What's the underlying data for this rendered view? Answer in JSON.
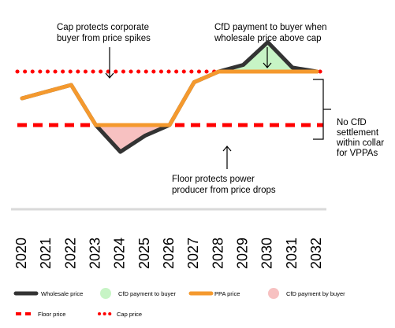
{
  "chart_data": {
    "type": "line",
    "x": [
      2020,
      2021,
      2022,
      2023,
      2024,
      2025,
      2026,
      2027,
      2028,
      2029,
      2030,
      2031,
      2032
    ],
    "tick_labels": [
      "2020",
      "2021",
      "2022",
      "2023",
      "2024",
      "2025",
      "2026",
      "2027",
      "2028",
      "2029",
      "2030",
      "2031",
      "2032"
    ],
    "cap_level": 70,
    "floor_level": 30,
    "ylim": [
      0,
      100
    ],
    "series": [
      {
        "name": "Wholesale price",
        "color": "#333333",
        "x": [
          2020,
          2021,
          2022,
          2023,
          2024,
          2025,
          2026,
          2027,
          2028,
          2029,
          2030,
          2031,
          2032
        ],
        "values": [
          50,
          55,
          60,
          30,
          10,
          22,
          30,
          62,
          70,
          75,
          92,
          73,
          70
        ]
      },
      {
        "name": "PPA price",
        "color": "#f4992e",
        "x": [
          2020,
          2021,
          2022,
          2023,
          2024,
          2025,
          2026,
          2027,
          2028,
          2029,
          2030,
          2031,
          2032
        ],
        "values": [
          50,
          55,
          60,
          30,
          30,
          30,
          30,
          62,
          70,
          70,
          70,
          70,
          70
        ]
      }
    ],
    "bands": [
      {
        "name": "CfD payment to buyer",
        "color": "#c7f4c5"
      },
      {
        "name": "CfD payment by buyer",
        "color": "#f7c1c1"
      }
    ],
    "reference_lines": [
      {
        "name": "Floor price",
        "color": "#ff0000",
        "style": "dashed"
      },
      {
        "name": "Cap price",
        "color": "#ff0000",
        "style": "dotted"
      }
    ],
    "annotations": {
      "cap_protects": [
        "Cap protects corporate",
        "buyer from price spikes"
      ],
      "cfd_to_buyer": [
        "CfD payment to buyer when",
        "wholesale price above cap"
      ],
      "floor_protects": [
        "Floor protects power",
        "producer from price drops"
      ],
      "no_cfd": [
        "No CfD",
        "settlement",
        "within collar",
        "for VPPAs"
      ]
    },
    "legend": {
      "placement": "bottom",
      "wholesale": "Wholesale price",
      "cfd_to_buyer": "CfD payment to buyer",
      "ppa": "PPA price",
      "cfd_by_buyer": "CfD payment by buyer",
      "floor": "Floor price",
      "cap": "Cap price"
    },
    "grid": false
  }
}
